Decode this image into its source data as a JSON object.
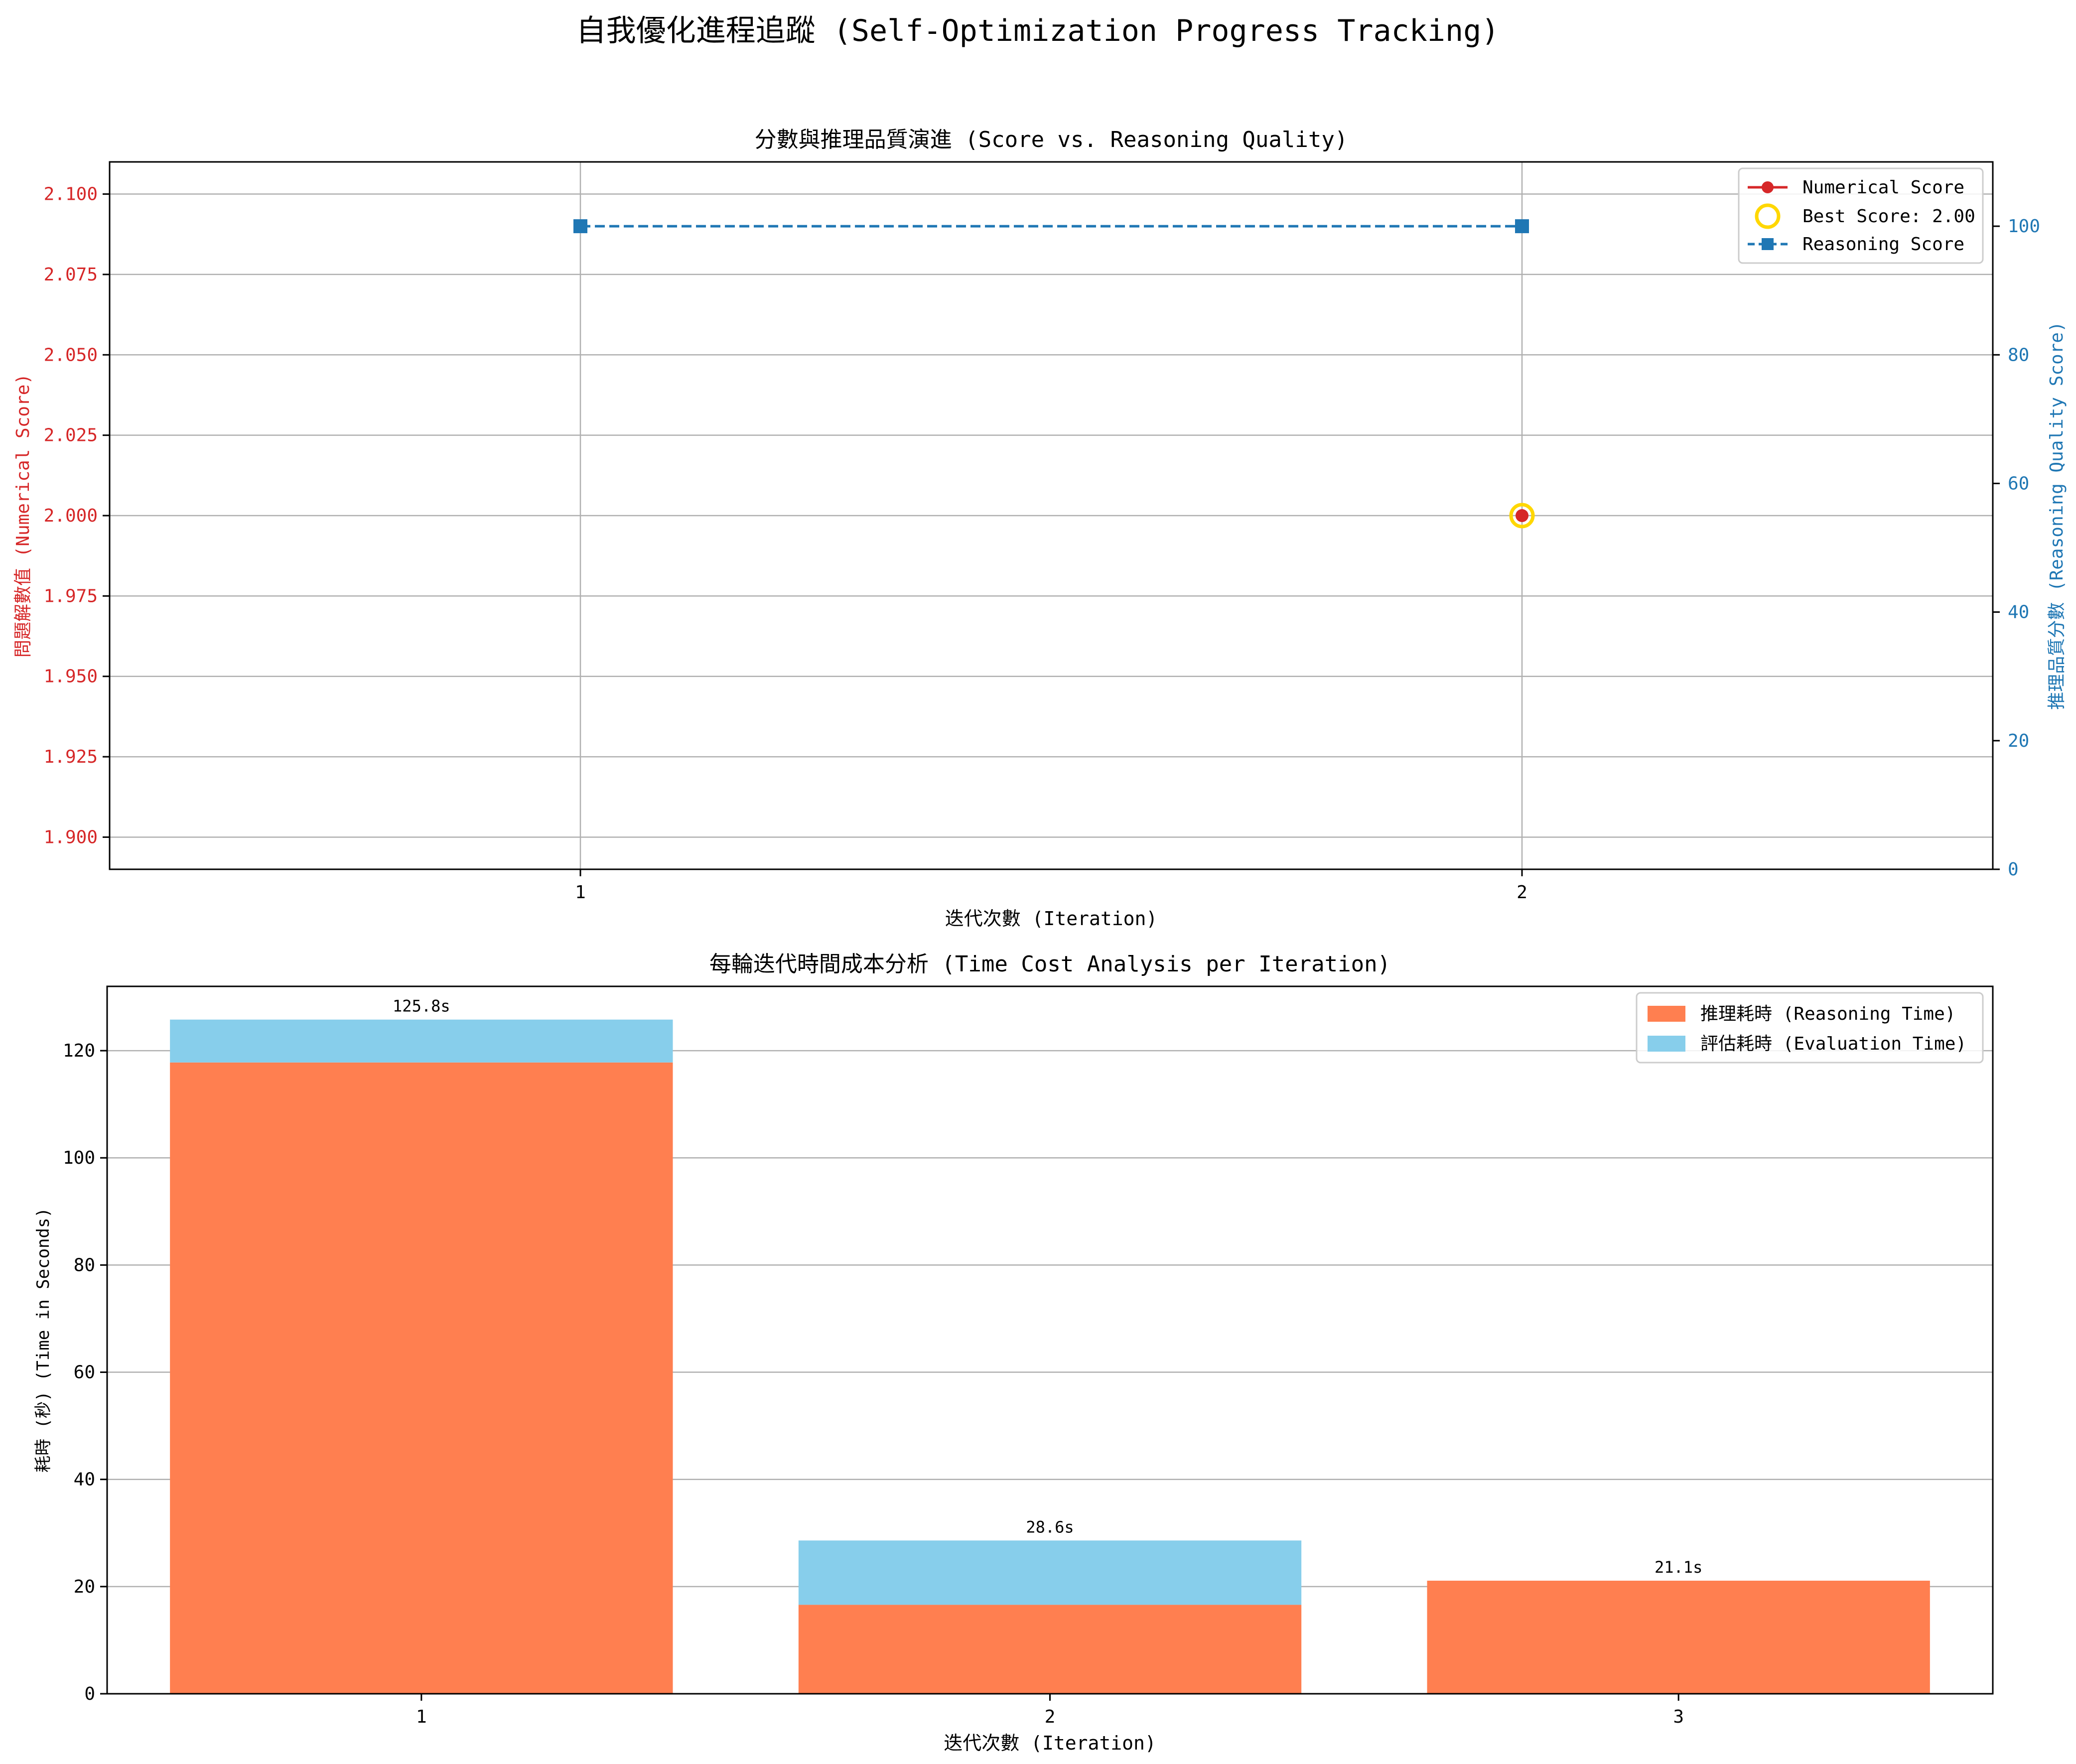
{
  "figure": {
    "suptitle": "自我優化進程追蹤 (Self-Optimization Progress Tracking)"
  },
  "colors": {
    "numerical": "#d62728",
    "best": "#ffd700",
    "reasoning_line": "#1f77b4",
    "reasoning_time": "#ff7f50",
    "evaluation_time": "#87ceeb",
    "grid": "#b0b0b0",
    "axis": "#000000"
  },
  "chart_data": [
    {
      "type": "line",
      "title": "分數與推理品質演進 (Score vs. Reasoning Quality)",
      "xlabel": "迭代次數 (Iteration)",
      "ylabel_left": "問題解數值 (Numerical Score)",
      "ylabel_right": "推理品質分數 (Reasoning Quality Score)",
      "x": [
        1,
        2
      ],
      "x_ticks": [
        "1",
        "2"
      ],
      "xlim": [
        0.5,
        2.5
      ],
      "ylim_left": [
        1.89,
        2.11
      ],
      "ylim_right": [
        0,
        110
      ],
      "y_ticks_left": [
        "1.900",
        "1.925",
        "1.950",
        "1.975",
        "2.000",
        "2.025",
        "2.050",
        "2.075",
        "2.100"
      ],
      "y_ticks_right": [
        "0",
        "20",
        "40",
        "60",
        "80",
        "100"
      ],
      "grid": true,
      "legend_position": "top-right",
      "series": [
        {
          "name": "Numerical Score",
          "axis": "left",
          "marker": "circle",
          "x": [
            2
          ],
          "values": [
            2.0
          ]
        },
        {
          "name": "Best Score: 2.00",
          "axis": "left",
          "marker": "ring",
          "x": [
            2
          ],
          "values": [
            2.0
          ]
        },
        {
          "name": "Reasoning Score",
          "axis": "right",
          "marker": "square",
          "style": "dashed",
          "x": [
            1,
            2
          ],
          "values": [
            100,
            100
          ]
        }
      ]
    },
    {
      "type": "bar",
      "stacked": true,
      "title": "每輪迭代時間成本分析 (Time Cost Analysis per Iteration)",
      "xlabel": "迭代次數 (Iteration)",
      "ylabel": "耗時 (秒) (Time in Seconds)",
      "categories": [
        "1",
        "2",
        "3"
      ],
      "ylim": [
        0,
        132
      ],
      "y_ticks": [
        "0",
        "20",
        "40",
        "60",
        "80",
        "100",
        "120"
      ],
      "grid": true,
      "legend_position": "top-right",
      "series": [
        {
          "name": "推理耗時 (Reasoning Time)",
          "values": [
            117.8,
            16.6,
            21.1
          ]
        },
        {
          "name": "評估耗時 (Evaluation Time)",
          "values": [
            8.0,
            12.0,
            0.0
          ]
        }
      ],
      "total_labels": [
        "125.8s",
        "28.6s",
        "21.1s"
      ]
    }
  ]
}
